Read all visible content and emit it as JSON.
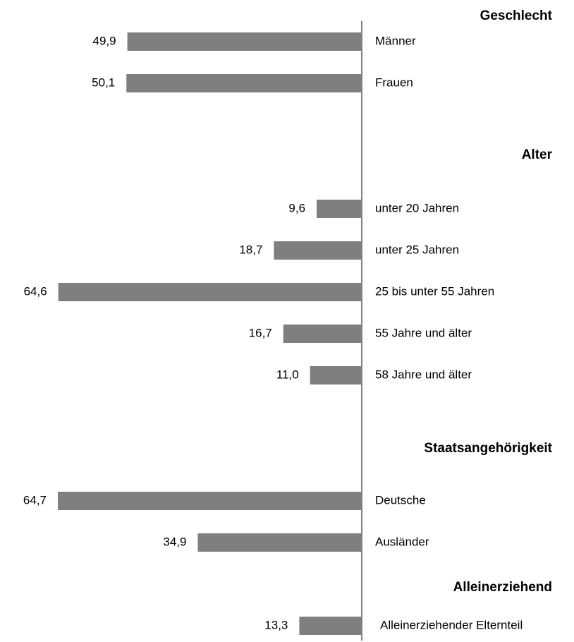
{
  "chart_data": {
    "type": "bar",
    "orientation": "horizontal",
    "bar_color": "#7f7f7f",
    "axis_color": "#808080",
    "xlim": [
      0,
      64.7
    ],
    "groups": [
      {
        "title": "Geschlecht",
        "categories": [
          "Männer",
          "Frauen"
        ],
        "values": [
          49.9,
          50.1
        ],
        "value_labels": [
          "49,9",
          "50,1"
        ]
      },
      {
        "title": "Alter",
        "categories": [
          "unter 20 Jahren",
          "unter 25 Jahren",
          "25 bis unter 55 Jahren",
          "55 Jahre und älter",
          "58 Jahre und älter"
        ],
        "values": [
          9.6,
          18.7,
          64.6,
          16.7,
          11.0
        ],
        "value_labels": [
          "9,6",
          "18,7",
          "64,6",
          "16,7",
          "11,0"
        ]
      },
      {
        "title": "Staatsangehörigkeit",
        "categories": [
          "Deutsche",
          "Ausländer"
        ],
        "values": [
          64.7,
          34.9
        ],
        "value_labels": [
          "64,7",
          "34,9"
        ]
      },
      {
        "title": "Alleinerziehend",
        "categories": [
          "Alleinerziehender Elternteil"
        ],
        "values": [
          13.3
        ],
        "value_labels": [
          "13,3"
        ]
      }
    ]
  }
}
